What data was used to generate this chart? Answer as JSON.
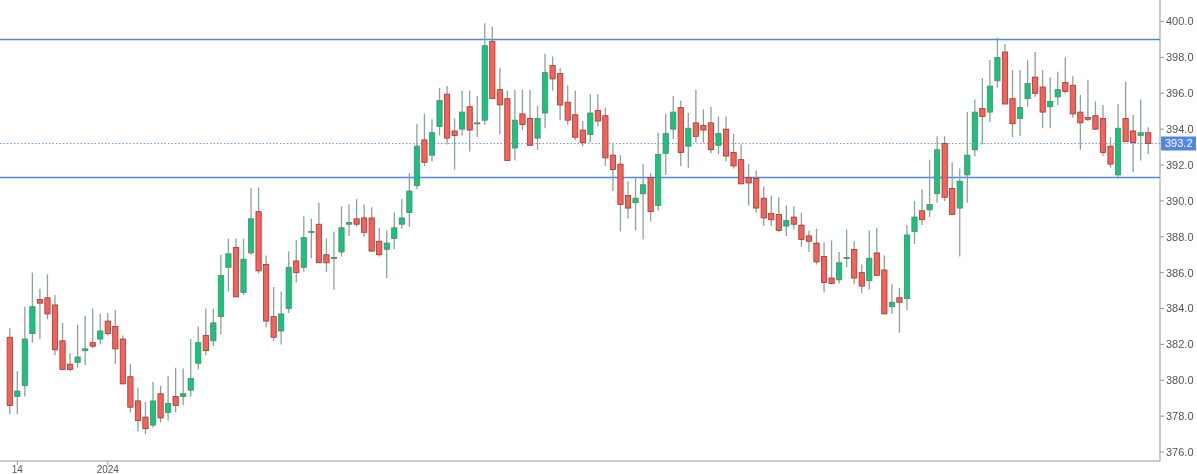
{
  "chart_data": {
    "type": "candlestick",
    "categories": [
      null,
      "14",
      null,
      null,
      null,
      null,
      null,
      null,
      null,
      null,
      null,
      null,
      null,
      "2024",
      null,
      null,
      null,
      null,
      null,
      null,
      null,
      null,
      null,
      null,
      null,
      null,
      null,
      null,
      null,
      null,
      null,
      null,
      null,
      null,
      null,
      null,
      null,
      null,
      null,
      null,
      null,
      null,
      null,
      null,
      null,
      null,
      null,
      null,
      null,
      null,
      null,
      null,
      null,
      null,
      null,
      null,
      null,
      null,
      null,
      null,
      null,
      null,
      null,
      null,
      null,
      null,
      null,
      null,
      null,
      null,
      null,
      null,
      null,
      null,
      null,
      null,
      null,
      null,
      null,
      null,
      null,
      null,
      null,
      null,
      null,
      null,
      null,
      null,
      null,
      null,
      null,
      null,
      null,
      null,
      null,
      null,
      null,
      null,
      null,
      null,
      null,
      null,
      null,
      null,
      null,
      null,
      null,
      null,
      null,
      null,
      null,
      null,
      null,
      null,
      null,
      null,
      null,
      null,
      null,
      null,
      null,
      null,
      null,
      null,
      null,
      null,
      null,
      null,
      null,
      null,
      null,
      null,
      null,
      null,
      null,
      null,
      null,
      null,
      null,
      null,
      null,
      null,
      null,
      null,
      null,
      null,
      null,
      null,
      null,
      null,
      null,
      null
    ],
    "ohlc": [
      [
        382.4,
        382.9,
        378.1,
        378.6
      ],
      [
        379.1,
        380.5,
        378.1,
        379.4
      ],
      [
        379.7,
        384.1,
        379.1,
        382.3
      ],
      [
        382.6,
        386.0,
        382.1,
        384.1
      ],
      [
        384.5,
        385.1,
        382.3,
        384.3
      ],
      [
        384.6,
        385.9,
        383.4,
        383.7
      ],
      [
        384.2,
        384.75,
        381.4,
        381.7
      ],
      [
        382.2,
        383.2,
        380.6,
        380.6
      ],
      [
        380.9,
        381.5,
        380.5,
        380.6
      ],
      [
        381.0,
        383.1,
        380.7,
        381.3
      ],
      [
        381.65,
        383.6,
        380.85,
        381.75
      ],
      [
        382.1,
        384.0,
        381.8,
        381.9
      ],
      [
        382.3,
        383.7,
        382.0,
        382.75
      ],
      [
        383.3,
        383.75,
        382.5,
        382.6
      ],
      [
        383.0,
        383.9,
        380.9,
        381.75
      ],
      [
        382.3,
        382.5,
        379.8,
        379.8
      ],
      [
        380.2,
        380.9,
        378.2,
        378.5
      ],
      [
        378.85,
        379.6,
        377.15,
        377.75
      ],
      [
        377.95,
        378.8,
        377.0,
        377.3
      ],
      [
        377.5,
        379.9,
        377.35,
        378.85
      ],
      [
        379.25,
        379.7,
        377.65,
        377.9
      ],
      [
        378.2,
        380.25,
        377.75,
        378.7
      ],
      [
        379.1,
        380.7,
        378.2,
        378.6
      ],
      [
        379.1,
        380.65,
        378.6,
        379.25
      ],
      [
        379.45,
        382.3,
        379.1,
        380.1
      ],
      [
        380.95,
        383.0,
        380.6,
        382.1
      ],
      [
        382.5,
        384.0,
        381.4,
        381.65
      ],
      [
        382.2,
        384.0,
        381.9,
        383.2
      ],
      [
        383.55,
        387.0,
        382.55,
        385.85
      ],
      [
        386.3,
        387.9,
        384.95,
        387.05
      ],
      [
        387.4,
        387.9,
        384.65,
        384.65
      ],
      [
        384.9,
        387.9,
        384.75,
        386.75
      ],
      [
        387.1,
        390.7,
        387.0,
        389.0
      ],
      [
        389.4,
        390.75,
        385.95,
        386.1
      ],
      [
        386.45,
        386.95,
        382.95,
        383.3
      ],
      [
        383.55,
        385.2,
        382.2,
        382.4
      ],
      [
        382.75,
        384.95,
        382.0,
        383.7
      ],
      [
        384.0,
        387.2,
        383.75,
        386.3
      ],
      [
        386.65,
        387.8,
        385.45,
        386.0
      ],
      [
        386.3,
        389.15,
        386.05,
        387.95
      ],
      [
        388.3,
        389.0,
        386.8,
        388.3
      ],
      [
        388.7,
        389.9,
        386.55,
        386.55
      ],
      [
        387.0,
        387.9,
        386.05,
        386.55
      ],
      [
        386.85,
        388.3,
        385.05,
        386.85
      ],
      [
        387.15,
        389.7,
        386.9,
        388.5
      ],
      [
        388.7,
        389.8,
        388.05,
        388.8
      ],
      [
        389.0,
        390.1,
        388.55,
        388.7
      ],
      [
        389.05,
        389.8,
        388.0,
        388.25
      ],
      [
        389.05,
        389.65,
        387.2,
        387.2
      ],
      [
        387.75,
        388.5,
        386.9,
        387.0
      ],
      [
        387.3,
        388.35,
        385.7,
        387.65
      ],
      [
        387.9,
        389.35,
        387.3,
        388.5
      ],
      [
        388.7,
        390.1,
        388.45,
        389.05
      ],
      [
        389.35,
        391.55,
        388.55,
        390.55
      ],
      [
        390.85,
        394.3,
        390.65,
        393.05
      ],
      [
        393.4,
        394.85,
        391.95,
        392.15
      ],
      [
        392.55,
        394.55,
        392.2,
        393.8
      ],
      [
        394.15,
        396.3,
        393.65,
        395.6
      ],
      [
        395.95,
        396.4,
        393.15,
        393.5
      ],
      [
        393.9,
        394.6,
        391.75,
        393.65
      ],
      [
        394.0,
        396.15,
        393.65,
        394.95
      ],
      [
        395.25,
        396.15,
        392.75,
        393.95
      ],
      [
        394.35,
        395.85,
        393.55,
        394.35
      ],
      [
        394.5,
        399.9,
        394.25,
        398.65
      ],
      [
        398.9,
        399.7,
        395.7,
        395.7
      ],
      [
        396.2,
        397.4,
        393.7,
        395.35
      ],
      [
        395.7,
        396.15,
        392.25,
        392.25
      ],
      [
        392.95,
        396.2,
        392.25,
        394.5
      ],
      [
        394.85,
        396.2,
        393.95,
        394.25
      ],
      [
        394.6,
        396.2,
        393.1,
        393.1
      ],
      [
        393.5,
        395.3,
        392.85,
        394.6
      ],
      [
        394.9,
        398.2,
        394.05,
        397.15
      ],
      [
        397.55,
        398.05,
        396.15,
        396.8
      ],
      [
        397.1,
        397.4,
        394.5,
        395.35
      ],
      [
        395.5,
        396.45,
        394.25,
        394.5
      ],
      [
        394.8,
        396.15,
        393.4,
        393.55
      ],
      [
        393.95,
        394.45,
        393.05,
        393.25
      ],
      [
        393.7,
        395.95,
        393.25,
        394.9
      ],
      [
        395.05,
        395.95,
        394.15,
        394.45
      ],
      [
        394.75,
        395.2,
        391.95,
        392.4
      ],
      [
        392.55,
        393.2,
        390.55,
        391.75
      ],
      [
        392.05,
        392.55,
        388.3,
        389.8
      ],
      [
        390.3,
        391.1,
        389.0,
        389.6
      ],
      [
        389.9,
        391.35,
        388.35,
        390.15
      ],
      [
        390.4,
        392.05,
        387.85,
        390.9
      ],
      [
        391.3,
        391.55,
        388.85,
        389.4
      ],
      [
        389.75,
        393.8,
        389.45,
        392.6
      ],
      [
        392.65,
        394.85,
        391.45,
        393.75
      ],
      [
        394.0,
        395.85,
        393.45,
        394.95
      ],
      [
        395.2,
        395.6,
        391.95,
        392.7
      ],
      [
        393.05,
        394.9,
        391.85,
        394.05
      ],
      [
        394.35,
        396.2,
        393.25,
        393.6
      ],
      [
        394.2,
        395.1,
        393.25,
        393.95
      ],
      [
        394.35,
        395.25,
        392.65,
        392.85
      ],
      [
        393.1,
        394.7,
        392.6,
        393.75
      ],
      [
        394.0,
        394.7,
        392.2,
        392.5
      ],
      [
        392.7,
        393.75,
        391.8,
        391.95
      ],
      [
        392.3,
        393.15,
        390.95,
        390.95
      ],
      [
        391.3,
        392.05,
        389.75,
        391.0
      ],
      [
        391.25,
        391.7,
        389.35,
        389.6
      ],
      [
        390.15,
        390.8,
        388.6,
        389.05
      ],
      [
        389.3,
        390.3,
        388.6,
        388.95
      ],
      [
        389.25,
        390.2,
        388.25,
        388.35
      ],
      [
        388.6,
        389.75,
        388.05,
        388.9
      ],
      [
        389.1,
        389.7,
        388.4,
        388.7
      ],
      [
        388.65,
        389.35,
        387.45,
        387.85
      ],
      [
        388.05,
        388.35,
        387.15,
        387.75
      ],
      [
        387.65,
        388.45,
        386.45,
        386.6
      ],
      [
        386.9,
        387.7,
        384.9,
        385.45
      ],
      [
        385.7,
        387.8,
        385.35,
        385.4
      ],
      [
        385.6,
        387.15,
        385.4,
        386.55
      ],
      [
        386.85,
        388.4,
        386.3,
        386.85
      ],
      [
        387.3,
        387.75,
        385.35,
        385.7
      ],
      [
        386.0,
        386.45,
        384.85,
        385.25
      ],
      [
        385.55,
        388.35,
        385.05,
        386.8
      ],
      [
        387.1,
        388.5,
        385.85,
        385.85
      ],
      [
        386.15,
        386.95,
        383.7,
        383.7
      ],
      [
        384.1,
        385.35,
        383.7,
        384.35
      ],
      [
        384.6,
        385.15,
        382.65,
        384.35
      ],
      [
        384.55,
        388.65,
        383.9,
        388.1
      ],
      [
        388.3,
        390.0,
        387.6,
        389.1
      ],
      [
        389.45,
        390.65,
        388.65,
        388.95
      ],
      [
        389.5,
        392.3,
        389.1,
        389.8
      ],
      [
        390.4,
        393.6,
        389.9,
        392.85
      ],
      [
        393.2,
        393.6,
        390.0,
        390.2
      ],
      [
        390.7,
        392.15,
        389.2,
        389.25
      ],
      [
        389.6,
        391.8,
        386.9,
        391.1
      ],
      [
        391.45,
        394.95,
        389.9,
        392.55
      ],
      [
        392.85,
        395.65,
        392.5,
        394.95
      ],
      [
        395.15,
        396.85,
        393.15,
        394.7
      ],
      [
        394.95,
        397.85,
        394.4,
        396.4
      ],
      [
        396.7,
        399.1,
        396.3,
        398.0
      ],
      [
        398.3,
        398.75,
        395.4,
        395.4
      ],
      [
        395.7,
        397.3,
        393.55,
        394.3
      ],
      [
        394.6,
        397.3,
        393.6,
        395.2
      ],
      [
        395.7,
        397.85,
        395.25,
        396.55
      ],
      [
        396.9,
        398.3,
        395.8,
        396.0
      ],
      [
        396.35,
        397.3,
        394.05,
        394.95
      ],
      [
        395.25,
        396.9,
        394.05,
        395.55
      ],
      [
        395.8,
        397.2,
        395.35,
        396.2
      ],
      [
        396.6,
        398.0,
        396.0,
        396.1
      ],
      [
        396.45,
        396.95,
        394.65,
        394.85
      ],
      [
        394.95,
        395.9,
        392.85,
        394.35
      ],
      [
        394.65,
        396.75,
        394.45,
        394.55
      ],
      [
        394.75,
        395.55,
        393.95,
        394.0
      ],
      [
        394.6,
        395.35,
        392.5,
        392.7
      ],
      [
        393.05,
        393.55,
        391.85,
        392.05
      ],
      [
        391.45,
        395.4,
        391.25,
        394.05
      ],
      [
        394.6,
        396.65,
        393.3,
        393.3
      ],
      [
        393.9,
        394.8,
        391.6,
        393.25
      ],
      [
        393.65,
        395.65,
        392.25,
        393.8
      ],
      [
        393.8,
        394.1,
        392.6,
        393.2
      ]
    ],
    "ylim": [
      375.5,
      401.2
    ],
    "yticks": [
      {
        "value": 376,
        "label": "376.0"
      },
      {
        "value": 378,
        "label": "378.0"
      },
      {
        "value": 380,
        "label": "380.0"
      },
      {
        "value": 382,
        "label": "382.0"
      },
      {
        "value": 384,
        "label": "384.0"
      },
      {
        "value": 386,
        "label": "386.0"
      },
      {
        "value": 388,
        "label": "388.0"
      },
      {
        "value": 390,
        "label": "390.0"
      },
      {
        "value": 392,
        "label": "392.0"
      },
      {
        "value": 394,
        "label": "394.0"
      },
      {
        "value": 396,
        "label": "396.0"
      },
      {
        "value": 398,
        "label": "398.0"
      },
      {
        "value": 400,
        "label": "400.0"
      }
    ],
    "ref_lines": [
      {
        "axis": "y",
        "value": 399.0,
        "color": "#4f86e8",
        "line_style": "solid"
      },
      {
        "axis": "y",
        "value": 391.3,
        "color": "#4f86e8",
        "line_style": "solid"
      },
      {
        "axis": "y",
        "value": 393.2,
        "label": "393.2",
        "color": "#4f86e8",
        "line_style": "dotted"
      }
    ],
    "grid": false
  }
}
